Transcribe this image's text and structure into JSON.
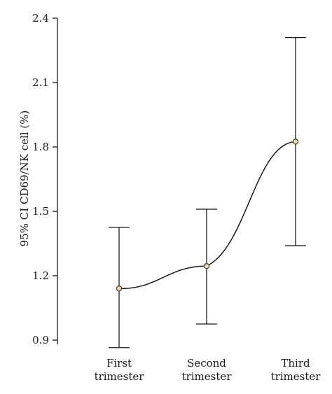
{
  "chart_data": {
    "type": "line",
    "categories": [
      [
        "First",
        "trimester"
      ],
      [
        "Second",
        "trimester"
      ],
      [
        "Third",
        "trimester"
      ]
    ],
    "series": [
      {
        "mean": [
          1.14,
          1.245,
          1.825
        ],
        "ci_lower": [
          0.865,
          0.975,
          1.34
        ],
        "ci_upper": [
          1.425,
          1.51,
          2.31
        ]
      }
    ],
    "ylabel": "95% CI CD69/NK cell (%)",
    "ylim": [
      0.9,
      2.4
    ],
    "yticks": [
      "0.9",
      "1.2",
      "1.5",
      "1.8",
      "2.1",
      "2.4"
    ],
    "grid": false,
    "legend": "none",
    "colors": {
      "line": "#1a1a1a",
      "marker_fill": "#e8e1a0",
      "marker_stroke": "#3a3a3a"
    }
  }
}
